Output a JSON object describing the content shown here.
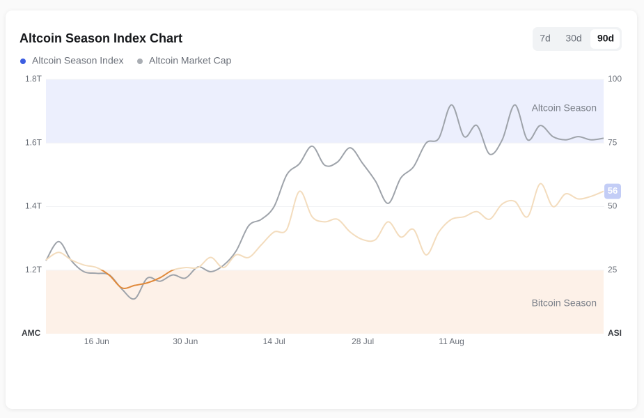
{
  "chart_data": {
    "type": "line",
    "title": "Altcoin Season Index Chart",
    "range_buttons": [
      "7d",
      "30d",
      "90d"
    ],
    "active_range": "90d",
    "y_axis_label": "AMC",
    "y2_axis_label": "ASI",
    "categories": [
      null,
      null,
      null,
      null,
      "16 Jun",
      null,
      null,
      null,
      null,
      null,
      null,
      "30 Jun",
      null,
      null,
      null,
      null,
      null,
      null,
      "14 Jul",
      null,
      null,
      null,
      null,
      null,
      null,
      "28 Jul",
      null,
      null,
      null,
      null,
      null,
      null,
      "11 Aug",
      null,
      null,
      null,
      null,
      null,
      null,
      null,
      null,
      null,
      null,
      null,
      null
    ],
    "series": [
      {
        "name": "Altcoin Season Index",
        "color": "#3d5ee1",
        "axis": "y2",
        "line_color": "#f3dcbd",
        "low_color": "#e0893a",
        "values": [
          29,
          32,
          29,
          27,
          26,
          23,
          18,
          19,
          20,
          22,
          25,
          26,
          26,
          30,
          26,
          31,
          30,
          35,
          40,
          41,
          56,
          46,
          44,
          45,
          40,
          37,
          37,
          44,
          38,
          41,
          31,
          40,
          45,
          46,
          48,
          45,
          51,
          52,
          46,
          59,
          50,
          55,
          53,
          54,
          56
        ]
      },
      {
        "name": "Altcoin Market Cap",
        "color": "#a9adb3",
        "axis": "y",
        "line_color": "#9ea3aa",
        "values": [
          1.23,
          1.29,
          1.23,
          1.195,
          1.19,
          1.185,
          1.14,
          1.11,
          1.175,
          1.165,
          1.185,
          1.175,
          1.21,
          1.195,
          1.215,
          1.26,
          1.34,
          1.36,
          1.4,
          1.5,
          1.535,
          1.59,
          1.53,
          1.54,
          1.585,
          1.535,
          1.48,
          1.41,
          1.49,
          1.525,
          1.6,
          1.615,
          1.72,
          1.62,
          1.655,
          1.565,
          1.61,
          1.72,
          1.61,
          1.655,
          1.62,
          1.61,
          1.62,
          1.61,
          1.615
        ]
      }
    ],
    "ylim": [
      1.0,
      1.8
    ],
    "yticks": [
      {
        "value": 1.2,
        "label": "1.2T"
      },
      {
        "value": 1.4,
        "label": "1.4T"
      },
      {
        "value": 1.6,
        "label": "1.6T"
      },
      {
        "value": 1.8,
        "label": "1.8T"
      }
    ],
    "y2lim": [
      0,
      100
    ],
    "y2ticks": [
      25,
      50,
      75,
      100
    ],
    "grid": true,
    "bands": [
      {
        "label": "Altcoin Season",
        "range": [
          75,
          100
        ],
        "color": "#eceffd"
      },
      {
        "label": "Bitcoin Season",
        "range": [
          0,
          25
        ],
        "color": "#fdf1e8"
      }
    ]
  }
}
